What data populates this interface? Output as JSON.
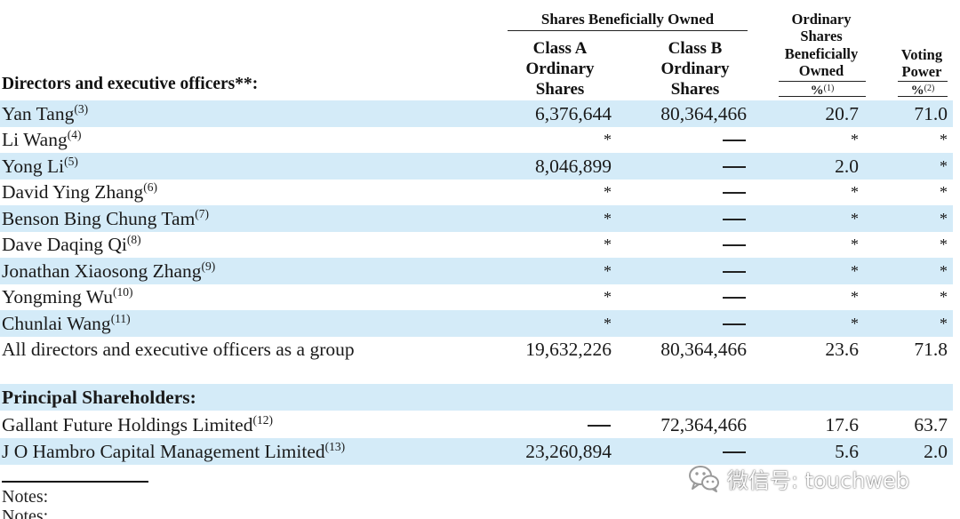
{
  "header": {
    "group_title": "Shares Beneficially Owned",
    "class_a_title": "Class A Ordinary Shares",
    "class_b_title": "Class B Ordinary Shares",
    "ordinary_title": "Ordinary Shares Beneficially Owned",
    "voting_title": "Voting Power",
    "pct_symbol": "%",
    "ordinary_pct_note": "(1)",
    "voting_pct_note": "(2)",
    "directors_title": "Directors and executive officers**:"
  },
  "colors": {
    "band": "#d4ebf8"
  },
  "directors": [
    {
      "name": "Yan Tang",
      "note": "(3)",
      "class_a": "6,376,644",
      "class_b": "80,364,466",
      "ordinary_pct": "20.7",
      "voting_pct": "71.0"
    },
    {
      "name": "Li Wang",
      "note": "(4)",
      "class_a": "*",
      "class_b": "—",
      "ordinary_pct": "*",
      "voting_pct": "*"
    },
    {
      "name": "Yong Li",
      "note": "(5)",
      "class_a": "8,046,899",
      "class_b": "—",
      "ordinary_pct": "2.0",
      "voting_pct": "*"
    },
    {
      "name": "David Ying Zhang",
      "note": "(6)",
      "class_a": "*",
      "class_b": "—",
      "ordinary_pct": "*",
      "voting_pct": "*"
    },
    {
      "name": "Benson Bing Chung Tam",
      "note": "(7)",
      "class_a": "*",
      "class_b": "—",
      "ordinary_pct": "*",
      "voting_pct": "*"
    },
    {
      "name": "Dave Daqing Qi",
      "note": "(8)",
      "class_a": "*",
      "class_b": "—",
      "ordinary_pct": "*",
      "voting_pct": "*"
    },
    {
      "name": "Jonathan Xiaosong Zhang",
      "note": "(9)",
      "class_a": "*",
      "class_b": "—",
      "ordinary_pct": "*",
      "voting_pct": "*"
    },
    {
      "name": "Yongming Wu",
      "note": "(10)",
      "class_a": "*",
      "class_b": "—",
      "ordinary_pct": "*",
      "voting_pct": "*"
    },
    {
      "name": "Chunlai Wang",
      "note": "(11)",
      "class_a": "*",
      "class_b": "—",
      "ordinary_pct": "*",
      "voting_pct": "*"
    },
    {
      "name": "All directors and executive officers as a group",
      "note": "",
      "class_a": "19,632,226",
      "class_b": "80,364,466",
      "ordinary_pct": "23.6",
      "voting_pct": "71.8"
    }
  ],
  "principal_title": "Principal Shareholders:",
  "principals": [
    {
      "name": "Gallant Future Holdings Limited",
      "note": "(12)",
      "class_a": "—",
      "class_b": "72,364,466",
      "ordinary_pct": "17.6",
      "voting_pct": "63.7"
    },
    {
      "name": "J O Hambro Capital Management Limited",
      "note": "(13)",
      "class_a": "23,260,894",
      "class_b": "—",
      "ordinary_pct": "5.6",
      "voting_pct": "2.0"
    }
  ],
  "notes_label": "Notes:",
  "watermark": {
    "text": "微信号: touchweb",
    "icon": "wechat-icon"
  }
}
